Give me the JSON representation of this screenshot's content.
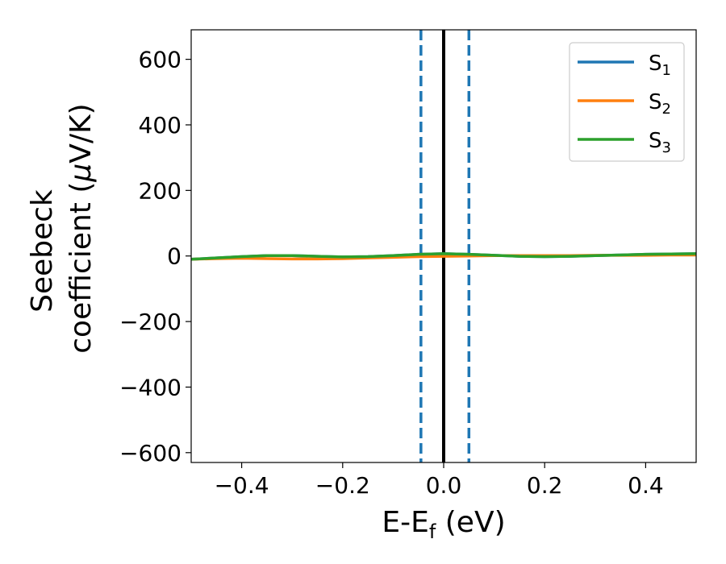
{
  "chart_data": {
    "type": "line",
    "xlabel": {
      "main": "E-E",
      "sub": "f",
      "rest": " (eV)"
    },
    "ylabel": {
      "line1": "Seebeck",
      "line2_prefix": "coefficient  (",
      "line2_mu": "μ",
      "line2_suffix": "V/K)"
    },
    "xlim": [
      -0.5,
      0.5
    ],
    "ylim": [
      -630,
      690
    ],
    "x_ticks": [
      -0.4,
      -0.2,
      0.0,
      0.2,
      0.4
    ],
    "x_tick_labels": [
      "−0.4",
      "−0.2",
      "0.0",
      "0.2",
      "0.4"
    ],
    "y_ticks": [
      600,
      400,
      200,
      0,
      -200,
      -400,
      -600
    ],
    "y_tick_labels": [
      "600",
      "400",
      "200",
      "0",
      "−200",
      "−400",
      "−600"
    ],
    "grid": false,
    "legend_position": "top-right",
    "vertical_lines": [
      {
        "x": 0.0,
        "style": "solid",
        "color": "#000000"
      },
      {
        "x": -0.045,
        "style": "dashed",
        "color": "#1f77b4"
      },
      {
        "x": 0.05,
        "style": "dashed",
        "color": "#1f77b4"
      }
    ],
    "x": [
      -0.5,
      -0.45,
      -0.4,
      -0.35,
      -0.3,
      -0.25,
      -0.2,
      -0.15,
      -0.1,
      -0.05,
      0.0,
      0.05,
      0.1,
      0.15,
      0.2,
      0.25,
      0.3,
      0.35,
      0.4,
      0.45,
      0.5
    ],
    "series": [
      {
        "name_main": "S",
        "name_sub": "1",
        "color": "#1f77b4",
        "values": [
          -10,
          -6,
          -2,
          1,
          1,
          -1,
          -3,
          -2,
          1,
          5,
          7,
          5,
          2,
          -1,
          -2,
          -1,
          1,
          3,
          5,
          6,
          7
        ]
      },
      {
        "name_main": "S",
        "name_sub": "2",
        "color": "#ff7f0e",
        "values": [
          -10,
          -8,
          -7,
          -8,
          -9,
          -9,
          -8,
          -6,
          -4,
          -2,
          -1,
          0,
          1,
          1,
          1,
          1,
          2,
          2,
          2,
          3,
          3
        ]
      },
      {
        "name_main": "S",
        "name_sub": "3",
        "color": "#2ca02c",
        "values": [
          -10,
          -6,
          -2,
          1,
          1,
          -1,
          -3,
          -2,
          1,
          5,
          7,
          5,
          2,
          -1,
          -2,
          -1,
          1,
          3,
          5,
          6,
          7
        ]
      }
    ]
  }
}
